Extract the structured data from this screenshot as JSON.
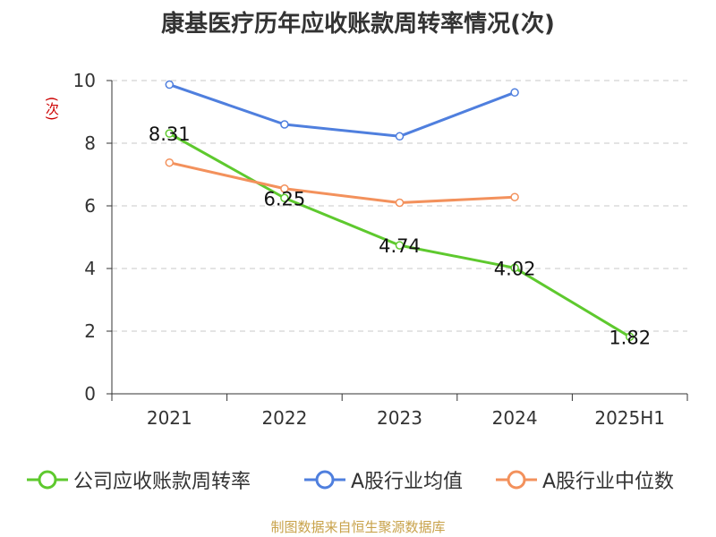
{
  "chart_data": {
    "type": "line",
    "title": "康基医疗历年应收账款周转率情况(次)",
    "ylabel": "(次)",
    "xlabel": "",
    "categories": [
      "2021",
      "2022",
      "2023",
      "2024",
      "2025H1"
    ],
    "ylim": [
      0,
      10
    ],
    "yticks": [
      0,
      2,
      4,
      6,
      8,
      10
    ],
    "grid": true,
    "legend_position": "bottom",
    "series": [
      {
        "name": "公司应收账款周转率",
        "color": "#5ec92e",
        "values": [
          8.31,
          6.25,
          4.74,
          4.02,
          1.82
        ],
        "labels": [
          "8.31",
          "6.25",
          "4.74",
          "4.02",
          "1.82"
        ]
      },
      {
        "name": "A股行业均值",
        "color": "#4f7fde",
        "values": [
          9.87,
          8.6,
          8.22,
          9.62,
          null
        ]
      },
      {
        "name": "A股行业中位数",
        "color": "#f3915c",
        "values": [
          7.38,
          6.55,
          6.1,
          6.28,
          null
        ]
      }
    ]
  },
  "footer": {
    "source": "制图数据来自恒生聚源数据库"
  }
}
